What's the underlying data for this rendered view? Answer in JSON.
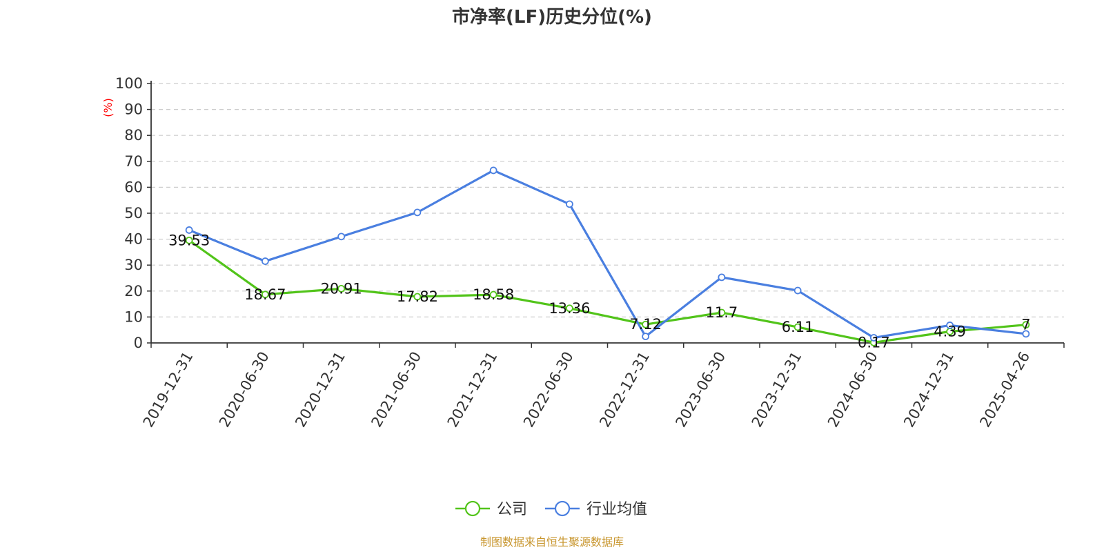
{
  "chart_data": {
    "type": "line",
    "title": "市净率(LF)历史分位(%)",
    "ylabel": "(%)",
    "xlabel": "",
    "ylim": [
      0,
      100
    ],
    "yticks": [
      0,
      10,
      20,
      30,
      40,
      50,
      60,
      70,
      80,
      90,
      100
    ],
    "grid": true,
    "legend_position": "bottom-center",
    "categories": [
      "2019-12-31",
      "2020-06-30",
      "2020-12-31",
      "2021-06-30",
      "2021-12-31",
      "2022-06-30",
      "2022-12-31",
      "2023-06-30",
      "2023-12-31",
      "2024-06-30",
      "2024-12-31",
      "2025-04-26"
    ],
    "series": [
      {
        "name": "公司",
        "color": "#52c41a",
        "values": [
          39.53,
          18.67,
          20.91,
          17.82,
          18.58,
          13.36,
          7.12,
          11.7,
          6.11,
          0.17,
          4.39,
          7
        ],
        "data_labels": [
          "39.53",
          "18.67",
          "20.91",
          "17.82",
          "18.58",
          "13.36",
          "7.12",
          "11.7",
          "6.11",
          "0.17",
          "4.39",
          "7"
        ]
      },
      {
        "name": "行业均值",
        "color": "#4a7fe0",
        "values": [
          43.5,
          31.5,
          41,
          50.3,
          66.5,
          53.5,
          2.5,
          25.3,
          20.2,
          2.0,
          6.8,
          3.5
        ]
      }
    ]
  },
  "colors": {
    "y_unit": "#ff0000",
    "source": "#c8962e",
    "grid": "#cccccc",
    "axis": "#333333"
  },
  "footer": {
    "source": "制图数据来自恒生聚源数据库"
  }
}
